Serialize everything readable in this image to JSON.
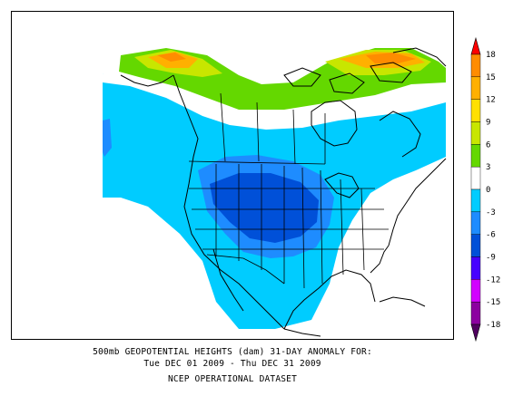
{
  "caption": {
    "line1": "500mb GEOPOTENTIAL HEIGHTS (dam)   31-DAY ANOMALY FOR:",
    "line2": "Tue DEC 01 2009 - Thu DEC 31 2009",
    "line3": "NCEP OPERATIONAL DATASET"
  },
  "legend": {
    "ticks": [
      "18",
      "15",
      "12",
      "9",
      "6",
      "3",
      "0",
      "-3",
      "-6",
      "-9",
      "-12",
      "-15",
      "-18"
    ],
    "colors": [
      "#ff0000",
      "#ff8c00",
      "#ffb000",
      "#ffe000",
      "#c8e600",
      "#64d800",
      "#ffffff",
      "#00ccff",
      "#1e8cff",
      "#0050d8",
      "#4600ff",
      "#d200ff",
      "#8c00a0",
      "#500060"
    ]
  },
  "fields": {
    "strong_positive_color": "#ff8c00",
    "positive_color": "#ffb000",
    "weak_positive_color": "#c8e600",
    "low_positive_color": "#64d800",
    "neutral_color": "#ffffff",
    "weak_negative_color": "#00ccff",
    "negative_color": "#1e8cff",
    "strong_negative_color": "#0050d8"
  }
}
